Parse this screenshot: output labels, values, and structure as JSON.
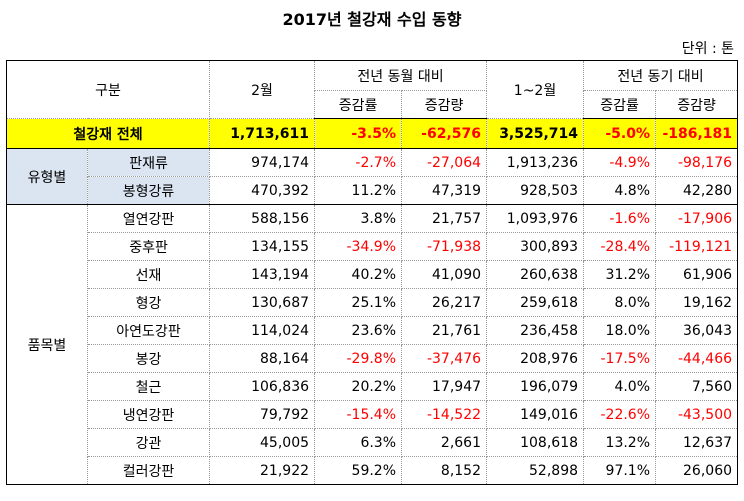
{
  "title": "2017년 철강재 수입 동향",
  "unit": "단위 : 톤",
  "headers": {
    "category": "구분",
    "feb": "2월",
    "yoy_month": "전년 동월 대비",
    "jan_feb": "1~2월",
    "yoy_period": "전년 동기 대비",
    "rate": "증감률",
    "amount": "증감량"
  },
  "total": {
    "label": "철강재 전체",
    "feb": "1,713,611",
    "rate1": "-3.5%",
    "amt1": "-62,576",
    "cum": "3,525,714",
    "rate2": "-5.0%",
    "amt2": "-186,181"
  },
  "type_group": {
    "label": "유형별",
    "rows": [
      {
        "label": "판재류",
        "feb": "974,174",
        "rate1": "-2.7%",
        "amt1": "-27,064",
        "cum": "1,913,236",
        "rate2": "-4.9%",
        "amt2": "-98,176"
      },
      {
        "label": "봉형강류",
        "feb": "470,392",
        "rate1": "11.2%",
        "amt1": "47,319",
        "cum": "928,503",
        "rate2": "4.8%",
        "amt2": "42,280"
      }
    ]
  },
  "item_group": {
    "label": "품목별",
    "rows": [
      {
        "label": "열연강판",
        "feb": "588,156",
        "rate1": "3.8%",
        "amt1": "21,757",
        "cum": "1,093,976",
        "rate2": "-1.6%",
        "amt2": "-17,906"
      },
      {
        "label": "중후판",
        "feb": "134,155",
        "rate1": "-34.9%",
        "amt1": "-71,938",
        "cum": "300,893",
        "rate2": "-28.4%",
        "amt2": "-119,121"
      },
      {
        "label": "선재",
        "feb": "143,194",
        "rate1": "40.2%",
        "amt1": "41,090",
        "cum": "260,638",
        "rate2": "31.2%",
        "amt2": "61,906"
      },
      {
        "label": "형강",
        "feb": "130,687",
        "rate1": "25.1%",
        "amt1": "26,217",
        "cum": "259,618",
        "rate2": "8.0%",
        "amt2": "19,162"
      },
      {
        "label": "아연도강판",
        "feb": "114,024",
        "rate1": "23.6%",
        "amt1": "21,761",
        "cum": "236,458",
        "rate2": "18.0%",
        "amt2": "36,043"
      },
      {
        "label": "봉강",
        "feb": "88,164",
        "rate1": "-29.8%",
        "amt1": "-37,476",
        "cum": "208,976",
        "rate2": "-17.5%",
        "amt2": "-44,466"
      },
      {
        "label": "철근",
        "feb": "106,836",
        "rate1": "20.2%",
        "amt1": "17,947",
        "cum": "196,079",
        "rate2": "4.0%",
        "amt2": "7,560"
      },
      {
        "label": "냉연강판",
        "feb": "79,792",
        "rate1": "-15.4%",
        "amt1": "-14,522",
        "cum": "149,016",
        "rate2": "-22.6%",
        "amt2": "-43,500"
      },
      {
        "label": "강관",
        "feb": "45,005",
        "rate1": "6.3%",
        "amt1": "2,661",
        "cum": "108,618",
        "rate2": "13.2%",
        "amt2": "12,637"
      },
      {
        "label": "컬러강판",
        "feb": "21,922",
        "rate1": "59.2%",
        "amt1": "8,152",
        "cum": "52,898",
        "rate2": "97.1%",
        "amt2": "26,060"
      }
    ]
  }
}
